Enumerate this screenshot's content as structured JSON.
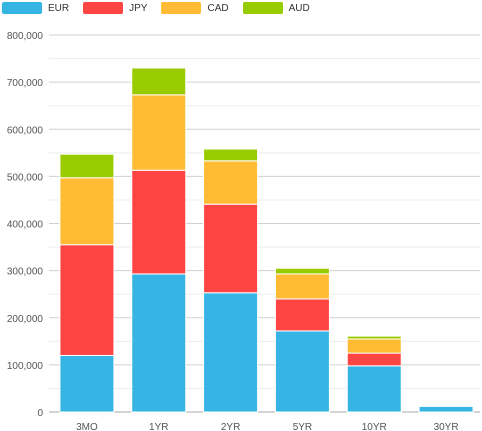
{
  "chart_data": {
    "type": "bar",
    "stacked": true,
    "categories": [
      "3MO",
      "1YR",
      "2YR",
      "5YR",
      "10YR",
      "30YR"
    ],
    "series": [
      {
        "name": "EUR",
        "color": "#36b5e5",
        "values": [
          120000,
          293000,
          253000,
          172000,
          98000,
          12000
        ]
      },
      {
        "name": "JPY",
        "color": "#ff4444",
        "values": [
          235000,
          220000,
          188000,
          68000,
          27000,
          1000
        ]
      },
      {
        "name": "CAD",
        "color": "#ffbb33",
        "values": [
          142000,
          160000,
          92000,
          53000,
          30000,
          2000
        ]
      },
      {
        "name": "AUD",
        "color": "#99cc00",
        "values": [
          50000,
          57000,
          25000,
          12000,
          6000,
          1000
        ]
      }
    ],
    "ylim": [
      0,
      800000
    ],
    "yticks": [
      "0",
      "100,000",
      "200,000",
      "300,000",
      "400,000",
      "500,000",
      "600,000",
      "700,000",
      "800,000"
    ],
    "legend_position": "top-left",
    "grid": true
  }
}
